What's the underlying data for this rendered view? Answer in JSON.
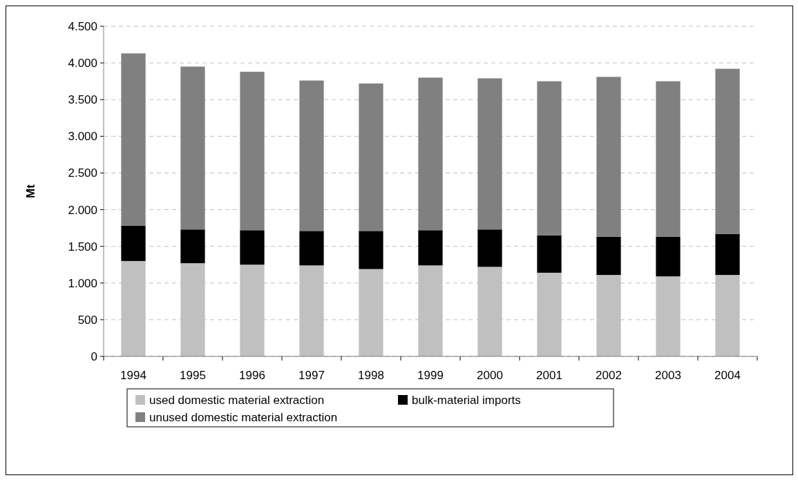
{
  "chart_data": {
    "type": "bar",
    "stacked": true,
    "ylabel": "Mt",
    "categories": [
      "1994",
      "1995",
      "1996",
      "1997",
      "1998",
      "1999",
      "2000",
      "2001",
      "2002",
      "2003",
      "2004"
    ],
    "series": [
      {
        "name": "used domestic material extraction",
        "color": "#c0c0c0",
        "values": [
          1300,
          1270,
          1250,
          1240,
          1190,
          1240,
          1220,
          1140,
          1110,
          1090,
          1110
        ]
      },
      {
        "name": "bulk-material imports",
        "color": "#000000",
        "values": [
          480,
          460,
          470,
          470,
          520,
          480,
          510,
          510,
          520,
          540,
          560
        ]
      },
      {
        "name": "unused domestic material extraction",
        "color": "#808080",
        "values": [
          2350,
          2220,
          2160,
          2050,
          2010,
          2080,
          2060,
          2100,
          2180,
          2120,
          2250
        ]
      }
    ],
    "ylim": [
      0,
      4500
    ],
    "yticks": [
      0,
      500,
      {
        "value": 1000,
        "label": "1.000"
      },
      {
        "value": 1500,
        "label": "1.500"
      },
      {
        "value": 2000,
        "label": "2.000"
      },
      {
        "value": 2500,
        "label": "2.500"
      },
      {
        "value": 3000,
        "label": "3.000"
      },
      {
        "value": 3500,
        "label": "3.500"
      },
      {
        "value": 4000,
        "label": "4.000"
      },
      {
        "value": 4500,
        "label": "4.500"
      }
    ],
    "grid": "y",
    "legend": "bottom"
  }
}
